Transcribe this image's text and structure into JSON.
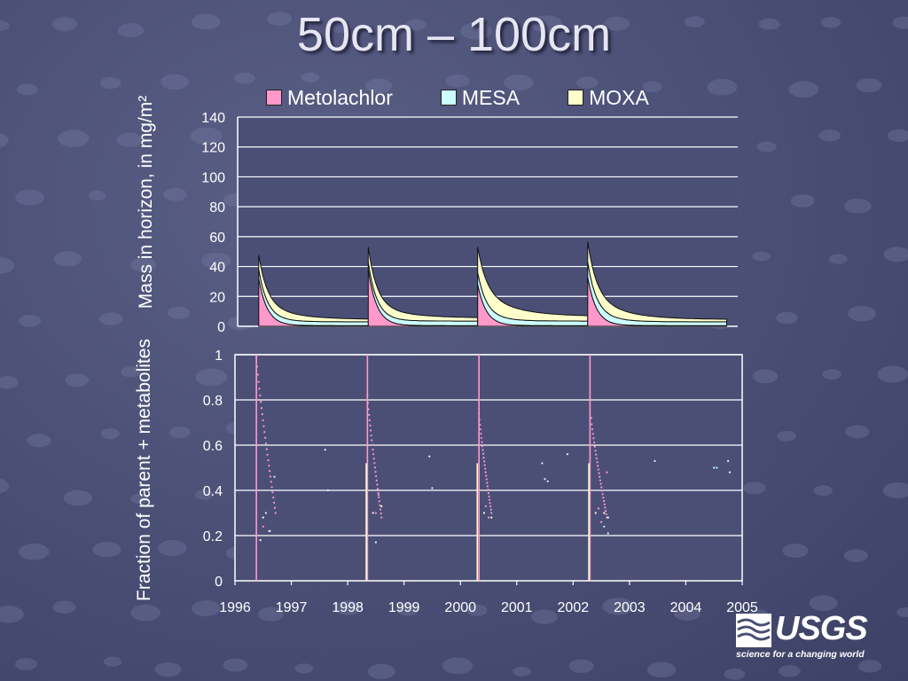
{
  "slide": {
    "title": "50cm – 100cm",
    "logo": {
      "word": "USGS",
      "tagline": "science for a changing world",
      "icon": "usgs-wave-logo"
    }
  },
  "colors": {
    "metolachlor": "#ff99cc",
    "mesa": "#ccffff",
    "moxa": "#ffffcc",
    "grid": "#ffffff",
    "plot_bg": "#4b4f76"
  },
  "chart_data": [
    {
      "type": "area",
      "stacked": true,
      "ylabel": "Mass in horizon, in mg/m²",
      "ylim": [
        0,
        140
      ],
      "yticks": [
        "0",
        "20",
        "40",
        "60",
        "80",
        "100",
        "120",
        "140"
      ],
      "xlim": [
        1996,
        2005
      ],
      "grid": true,
      "legend_position": "top",
      "series": [
        {
          "name": "Metolachlor",
          "color_key": "metolachlor"
        },
        {
          "name": "MESA",
          "color_key": "mesa"
        },
        {
          "name": "MOXA",
          "color_key": "moxa"
        }
      ],
      "events": [
        {
          "start": 1996.38,
          "end": 1998.35,
          "metolachlor_peak": 32,
          "mesa_peak": 6,
          "moxa_peak": 4,
          "total_floor": 4,
          "metolachlor_floor": 0.5,
          "mesa_floor": 2.5
        },
        {
          "start": 1998.35,
          "end": 2000.32,
          "metolachlor_peak": 38,
          "mesa_peak": 5,
          "moxa_peak": 4,
          "total_floor": 5,
          "metolachlor_floor": 0.5,
          "mesa_floor": 3
        },
        {
          "start": 2000.32,
          "end": 2002.3,
          "metolachlor_peak": 28,
          "mesa_peak": 8,
          "moxa_peak": 10,
          "total_floor": 6,
          "metolachlor_floor": 0.5,
          "mesa_floor": 3
        },
        {
          "start": 2002.3,
          "end": 2004.8,
          "metolachlor_peak": 33,
          "mesa_peak": 10,
          "moxa_peak": 8,
          "total_floor": 4,
          "metolachlor_floor": 0.5,
          "mesa_floor": 2.5
        }
      ]
    },
    {
      "type": "scatter",
      "ylabel": "Fraction of parent + metabolites",
      "ylim": [
        0,
        1
      ],
      "yticks": [
        "0",
        "0.2",
        "0.4",
        "0.6",
        "0.8",
        "1"
      ],
      "xlim": [
        1996,
        2005
      ],
      "xticks": [
        "1996",
        "1997",
        "1998",
        "1999",
        "2000",
        "2001",
        "2002",
        "2003",
        "2004",
        "2005"
      ],
      "grid": true,
      "series": [
        {
          "name": "Metolachlor",
          "color_key": "metolachlor",
          "decays": [
            {
              "start": 1996.38,
              "end": 1996.72,
              "from": 0.99,
              "to": 0.3
            },
            {
              "start": 1998.35,
              "end": 1998.6,
              "from": 0.82,
              "to": 0.28
            },
            {
              "start": 2000.33,
              "end": 2000.55,
              "from": 0.74,
              "to": 0.3
            },
            {
              "start": 2002.32,
              "end": 2002.6,
              "from": 0.72,
              "to": 0.28
            }
          ],
          "spikes": [
            1996.38,
            1998.35,
            2000.33,
            2002.3
          ],
          "points": [
            [
              1996.5,
              0.24
            ],
            [
              1996.6,
              0.22
            ],
            [
              1998.5,
              0.3
            ],
            [
              1998.55,
              0.38
            ],
            [
              2000.45,
              0.33
            ],
            [
              2000.5,
              0.28
            ],
            [
              2002.45,
              0.32
            ],
            [
              2002.5,
              0.26
            ],
            [
              2002.6,
              0.48
            ]
          ]
        },
        {
          "name": "MESA",
          "color_key": "mesa",
          "points": [
            [
              1996.55,
              0.3
            ],
            [
              1996.62,
              0.22
            ],
            [
              1996.7,
              0.46
            ],
            [
              1997.6,
              0.58
            ],
            [
              1997.65,
              0.4
            ],
            [
              1998.5,
              0.17
            ],
            [
              1999.45,
              0.55
            ],
            [
              1999.5,
              0.41
            ],
            [
              2001.45,
              0.52
            ],
            [
              2001.5,
              0.45
            ],
            [
              2001.55,
              0.44
            ],
            [
              2001.9,
              0.56
            ],
            [
              2002.55,
              0.24
            ],
            [
              2002.62,
              0.21
            ],
            [
              2003.45,
              0.53
            ],
            [
              2004.5,
              0.5
            ],
            [
              2004.55,
              0.5
            ],
            [
              2004.75,
              0.53
            ],
            [
              2004.78,
              0.48
            ]
          ]
        },
        {
          "name": "MOXA",
          "color_key": "moxa",
          "spikes": [
            1998.33,
            2000.3,
            2002.28
          ],
          "points": [
            [
              1996.45,
              0.18
            ],
            [
              1996.5,
              0.28
            ],
            [
              1998.45,
              0.3
            ],
            [
              1998.6,
              0.33
            ],
            [
              2000.42,
              0.3
            ],
            [
              2000.55,
              0.28
            ],
            [
              2002.4,
              0.3
            ],
            [
              2002.55,
              0.3
            ],
            [
              2002.62,
              0.28
            ]
          ]
        }
      ]
    }
  ]
}
